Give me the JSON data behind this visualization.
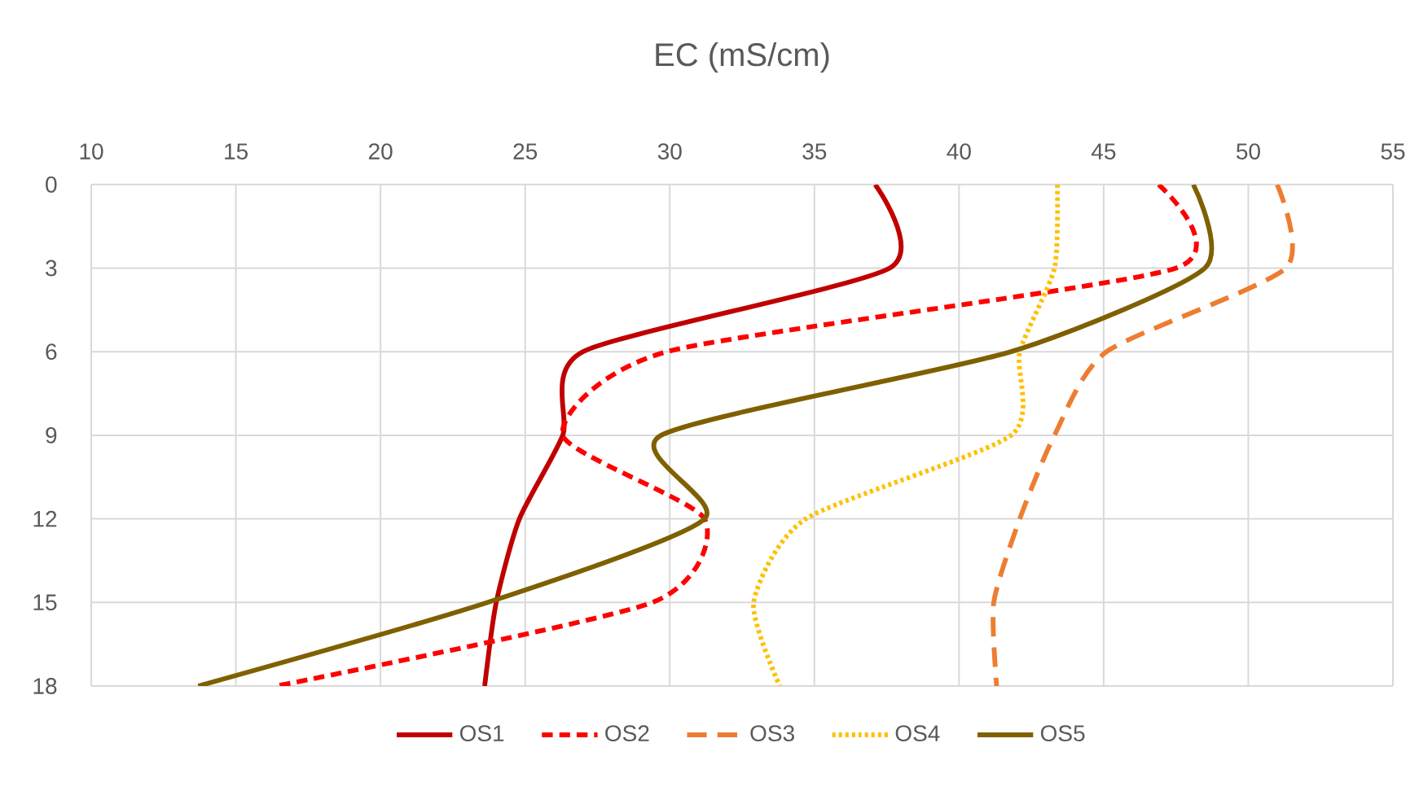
{
  "chart_data": {
    "type": "line",
    "title": "EC (mS/cm)",
    "x": [
      0,
      3,
      6,
      9,
      12,
      15,
      18
    ],
    "series": [
      {
        "name": "OS1",
        "color": "#c00000",
        "line_style": "solid",
        "values": [
          37.1,
          37.6,
          27.0,
          26.3,
          24.8,
          24.0,
          23.6
        ]
      },
      {
        "name": "OS2",
        "color": "#ff0000",
        "line_style": "dashed",
        "values": [
          46.9,
          47.5,
          29.9,
          26.3,
          31.2,
          29.4,
          16.4
        ]
      },
      {
        "name": "OS3",
        "color": "#ed7d31",
        "line_style": "longdashed",
        "values": [
          51.0,
          51.3,
          45.1,
          43.3,
          42.1,
          41.2,
          41.3
        ]
      },
      {
        "name": "OS4",
        "color": "#ffc000",
        "line_style": "dotted",
        "values": [
          43.4,
          43.3,
          42.1,
          41.8,
          34.7,
          32.9,
          33.8
        ]
      },
      {
        "name": "OS5",
        "color": "#7f6000",
        "line_style": "solid",
        "values": [
          48.1,
          48.5,
          41.8,
          29.7,
          31.2,
          23.7,
          13.7
        ]
      }
    ],
    "orientation": "horizontal",
    "xlim": [
      10,
      55
    ],
    "xticks": [
      10,
      15,
      20,
      25,
      30,
      35,
      40,
      45,
      50,
      55
    ],
    "ylim": [
      18,
      0
    ],
    "yticks": [
      0,
      3,
      6,
      9,
      12,
      15,
      18
    ],
    "grid": true,
    "legend": "bottom",
    "marker": "none"
  }
}
